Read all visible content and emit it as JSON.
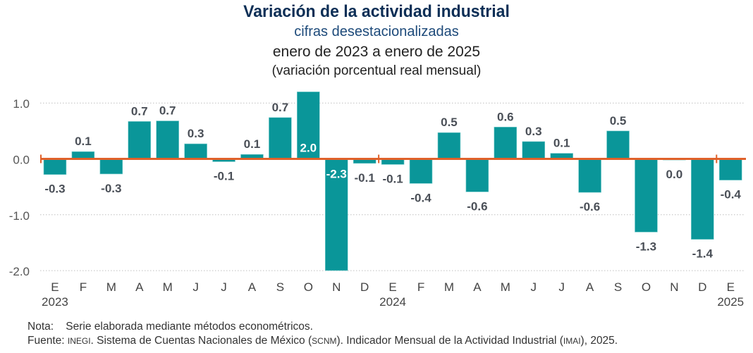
{
  "header": {
    "title": "Variación de la actividad industrial",
    "subtitle": "cifras desestacionalizadas",
    "period": "enero de 2023 a enero de 2025",
    "units": "(variación porcentual real mensual)"
  },
  "colors": {
    "bar": "#0a9699",
    "zero_line": "#e0612a",
    "label_dark": "#4a4f57",
    "label_inside": "#ffffff",
    "axis_text": "#555555",
    "grid": "#bfbfbf"
  },
  "chart_data": {
    "type": "bar",
    "title": "Variación de la actividad industrial",
    "subtitle": "cifras desestacionalizadas, enero de 2023 a enero de 2025 (variación porcentual real mensual)",
    "xlabel": "",
    "ylabel": "",
    "ylim": [
      -2.0,
      1.0
    ],
    "yticks": [
      1.0,
      0.0,
      -1.0,
      -2.0
    ],
    "ytick_labels": [
      "1.0",
      "0.0",
      "-1.0",
      "-2.0"
    ],
    "grid": true,
    "categories": [
      "E",
      "F",
      "M",
      "A",
      "M",
      "J",
      "J",
      "A",
      "S",
      "O",
      "N",
      "D",
      "E",
      "F",
      "M",
      "A",
      "M",
      "J",
      "J",
      "A",
      "S",
      "O",
      "N",
      "D",
      "E"
    ],
    "year_labels": [
      {
        "index": 0,
        "label": "2023"
      },
      {
        "index": 12,
        "label": "2024"
      },
      {
        "index": 24,
        "label": "2025"
      }
    ],
    "values": [
      -0.3,
      0.1,
      -0.3,
      0.7,
      0.7,
      0.3,
      -0.1,
      0.1,
      0.7,
      2.0,
      -2.3,
      -0.1,
      -0.1,
      -0.4,
      0.5,
      -0.6,
      0.6,
      0.3,
      0.1,
      -0.6,
      0.5,
      -1.3,
      0.0,
      -1.4,
      -0.4
    ],
    "value_labels": [
      "-0.3",
      "0.1",
      "-0.3",
      "0.7",
      "0.7",
      "0.3",
      "-0.1",
      "0.1",
      "0.7",
      "2.0",
      "-2.3",
      "-0.1",
      "-0.1",
      "-0.4",
      "0.5",
      "-0.6",
      "0.6",
      "0.3",
      "0.1",
      "-0.6",
      "0.5",
      "-1.3",
      "0.0",
      "-1.4",
      "-0.4"
    ],
    "bar_heights_approx": [
      -0.28,
      0.13,
      -0.27,
      0.67,
      0.68,
      0.27,
      -0.05,
      0.08,
      0.74,
      1.2,
      -2.02,
      -0.08,
      -0.1,
      -0.44,
      0.47,
      -0.59,
      0.57,
      0.31,
      0.1,
      -0.6,
      0.5,
      -1.31,
      -0.02,
      -1.44,
      -0.38
    ],
    "clipped_indices": [
      9,
      10
    ],
    "legend": null
  },
  "footer": {
    "note_label": "Nota:",
    "note_text": "Serie elaborada mediante métodos econométricos.",
    "source_label": "Fuente:",
    "source_inegi": "INEGI",
    "source_text_1": ". Sistema de Cuentas Nacionales de México (",
    "source_scnm": "SCNM",
    "source_text_2": "). Indicador Mensual de la Actividad Industrial (",
    "source_imai": "IMAI",
    "source_text_3": "), 2025."
  }
}
